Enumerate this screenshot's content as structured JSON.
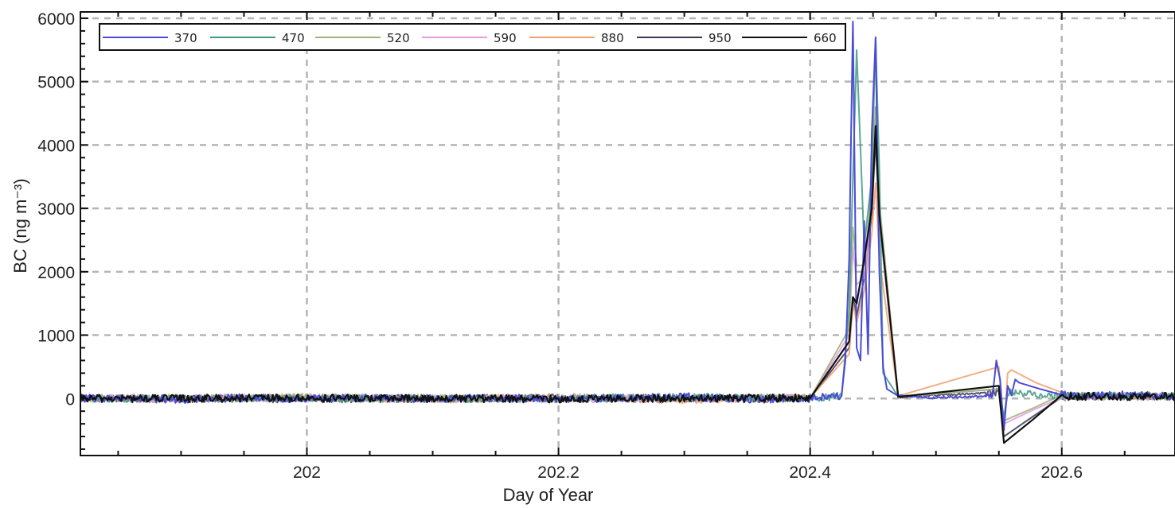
{
  "chart_data": {
    "type": "line",
    "xlabel": "Day of Year",
    "ylabel": "BC (ng m⁻³)",
    "xlim": [
      201.82,
      202.69
    ],
    "ylim": [
      -900,
      6100
    ],
    "xticks": [
      202,
      202.2,
      202.4,
      202.6
    ],
    "xtick_labels": [
      "202",
      "202.2",
      "202.4",
      "202.6"
    ],
    "yticks": [
      0,
      1000,
      2000,
      3000,
      4000,
      5000,
      6000
    ],
    "ytick_labels": [
      "0",
      "1000",
      "2000",
      "3000",
      "4000",
      "5000",
      "6000"
    ],
    "grid": true,
    "legend_position": "top-left",
    "series": [
      {
        "name": "370",
        "color": "#4b4bd8",
        "x": [
          201.82,
          201.85,
          201.9,
          201.95,
          202.0,
          202.05,
          202.1,
          202.15,
          202.2,
          202.25,
          202.3,
          202.35,
          202.4,
          202.425,
          202.428,
          202.431,
          202.434,
          202.437,
          202.44,
          202.443,
          202.446,
          202.449,
          202.452,
          202.455,
          202.458,
          202.461,
          202.47,
          202.5,
          202.545,
          202.548,
          202.551,
          202.554,
          202.557,
          202.56,
          202.563,
          202.566,
          202.598,
          202.62,
          202.65,
          202.69
        ],
        "y": [
          0,
          10,
          -15,
          20,
          -10,
          15,
          -5,
          10,
          -10,
          5,
          30,
          -20,
          10,
          50,
          600,
          2200,
          5950,
          800,
          600,
          2800,
          700,
          4200,
          5700,
          2000,
          500,
          150,
          40,
          10,
          40,
          600,
          300,
          -500,
          200,
          50,
          300,
          250,
          60,
          40,
          60,
          30
        ]
      },
      {
        "name": "470",
        "color": "#3f9a82",
        "x": [
          201.82,
          201.9,
          202.0,
          202.1,
          202.2,
          202.3,
          202.4,
          202.425,
          202.431,
          202.434,
          202.437,
          202.443,
          202.449,
          202.452,
          202.455,
          202.458,
          202.47,
          202.55,
          202.554,
          202.557,
          202.6,
          202.69
        ],
        "y": [
          0,
          -10,
          10,
          -5,
          5,
          20,
          5,
          40,
          1400,
          3500,
          5500,
          2400,
          3500,
          5700,
          3600,
          400,
          30,
          200,
          -300,
          100,
          40,
          40
        ]
      },
      {
        "name": "520",
        "color": "#9bb37a",
        "x": [
          201.82,
          202.0,
          202.2,
          202.4,
          202.431,
          202.434,
          202.437,
          202.443,
          202.449,
          202.452,
          202.455,
          202.47,
          202.55,
          202.554,
          202.6,
          202.69
        ],
        "y": [
          0,
          10,
          -5,
          5,
          1100,
          2700,
          2100,
          2100,
          3300,
          4600,
          3100,
          30,
          150,
          -350,
          40,
          35
        ]
      },
      {
        "name": "590",
        "color": "#e79be0",
        "x": [
          201.82,
          202.0,
          202.2,
          202.4,
          202.431,
          202.434,
          202.437,
          202.443,
          202.449,
          202.452,
          202.455,
          202.47,
          202.55,
          202.554,
          202.6,
          202.69
        ],
        "y": [
          0,
          5,
          -5,
          10,
          1000,
          2400,
          1800,
          1900,
          3000,
          4600,
          2800,
          25,
          150,
          -400,
          35,
          30
        ]
      },
      {
        "name": "880",
        "color": "#f0a070",
        "x": [
          201.82,
          201.9,
          202.0,
          202.1,
          202.2,
          202.3,
          202.4,
          202.431,
          202.434,
          202.437,
          202.443,
          202.449,
          202.452,
          202.455,
          202.47,
          202.55,
          202.554,
          202.557,
          202.56,
          202.6,
          202.69
        ],
        "y": [
          10,
          -20,
          25,
          -15,
          20,
          -25,
          15,
          700,
          1500,
          1200,
          1700,
          2600,
          3400,
          2200,
          40,
          500,
          -550,
          400,
          450,
          40,
          35
        ]
      },
      {
        "name": "950",
        "color": "#3a3a55",
        "x": [
          201.82,
          202.0,
          202.2,
          202.4,
          202.431,
          202.434,
          202.437,
          202.443,
          202.449,
          202.452,
          202.455,
          202.47,
          202.55,
          202.554,
          202.6,
          202.69
        ],
        "y": [
          0,
          -5,
          5,
          0,
          800,
          1600,
          1300,
          1900,
          2900,
          4100,
          2800,
          20,
          100,
          -600,
          30,
          30
        ]
      },
      {
        "name": "660",
        "color": "#111111",
        "x": [
          201.82,
          202.0,
          202.2,
          202.4,
          202.431,
          202.434,
          202.437,
          202.443,
          202.449,
          202.452,
          202.455,
          202.47,
          202.55,
          202.554,
          202.6,
          202.69
        ],
        "y": [
          0,
          5,
          -5,
          5,
          900,
          1600,
          1500,
          2200,
          3000,
          4300,
          2900,
          25,
          200,
          -700,
          35,
          30
        ]
      }
    ]
  }
}
